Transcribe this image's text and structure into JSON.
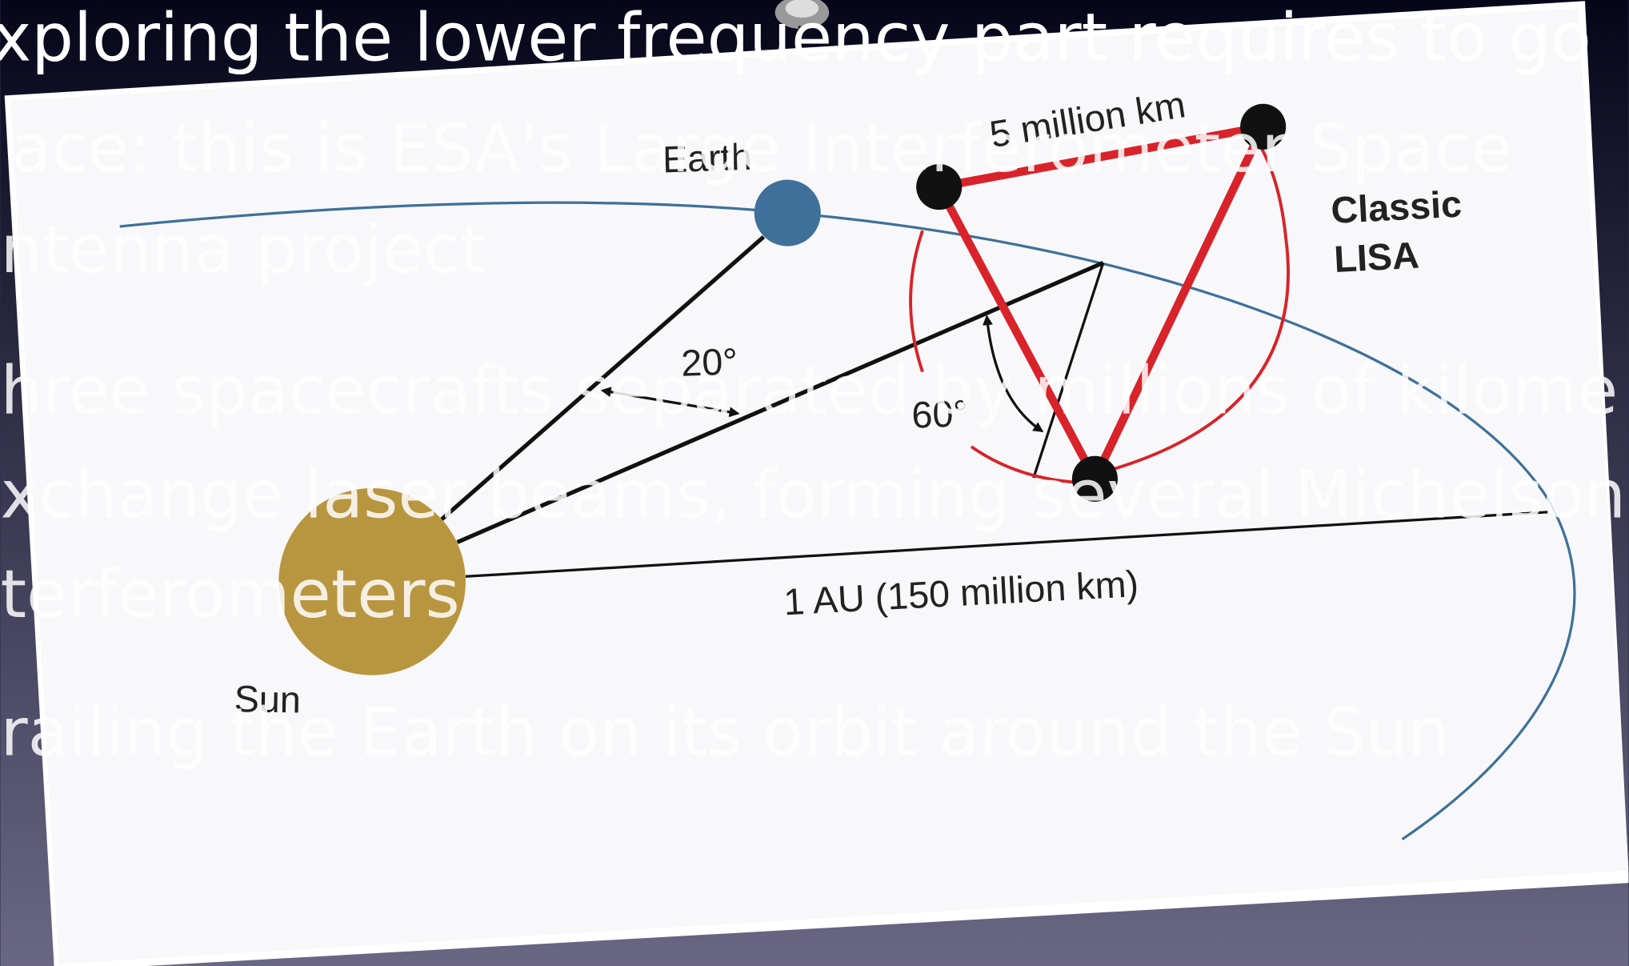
{
  "slide": {
    "text_lines": [
      "xploring the lower frequency part requires to go",
      "ace: this is ESA's Large Interferometer Space",
      "ntenna project",
      "hree spacecrafts separated by millions of kilome",
      "xchange laser beams, forming several Michelson",
      "terferometers",
      "railing the Earth on its orbit around the Sun"
    ]
  },
  "diagram": {
    "earth": "Earth",
    "distance": "5 million km",
    "classic": "Classic",
    "lisa": "LISA",
    "angle_earth": "20°",
    "angle_lisa": "60°",
    "au": "1 AU (150 million km)",
    "sun": "Sun"
  }
}
